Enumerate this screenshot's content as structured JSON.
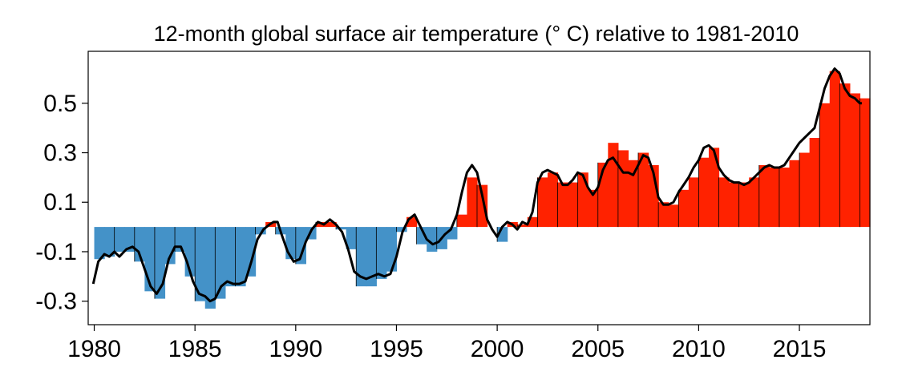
{
  "chart_data": {
    "type": "bar",
    "title": "12-month global surface air temperature (° C) relative to 1981-2010",
    "xlabel": "",
    "ylabel": "",
    "xlim": [
      1979.7,
      2018.5
    ],
    "ylim": [
      -0.395,
      0.71
    ],
    "x_ticks": [
      1980,
      1985,
      1990,
      1995,
      2000,
      2005,
      2010,
      2015
    ],
    "y_ticks": [
      -0.3,
      -0.1,
      0.1,
      0.3,
      0.5
    ],
    "y_tick_labels": [
      "-0.3",
      "-0.1",
      "0.1",
      "0.3",
      "0.5"
    ],
    "x_tick_labels": [
      "1980",
      "1985",
      "1990",
      "1995",
      "2000",
      "2005",
      "2010",
      "2015"
    ],
    "grid": false,
    "colors": {
      "positive": "#ff2200",
      "negative": "#4492c8",
      "line": "#000000",
      "year_divider": "#000000"
    },
    "series": [
      {
        "kind": "bars",
        "x": [
          1980.0,
          1980.5,
          1981.0,
          1981.5,
          1982.0,
          1982.5,
          1983.0,
          1983.5,
          1984.0,
          1984.5,
          1985.0,
          1985.5,
          1986.0,
          1986.5,
          1987.0,
          1987.5,
          1988.0,
          1988.5,
          1989.0,
          1989.5,
          1990.0,
          1990.5,
          1991.0,
          1991.5,
          1992.0,
          1992.5,
          1993.0,
          1993.5,
          1994.0,
          1994.5,
          1995.0,
          1995.5,
          1996.0,
          1996.5,
          1997.0,
          1997.5,
          1998.0,
          1998.5,
          1999.0,
          1999.5,
          2000.0,
          2000.5,
          2001.0,
          2001.5,
          2002.0,
          2002.5,
          2003.0,
          2003.5,
          2004.0,
          2004.5,
          2005.0,
          2005.5,
          2006.0,
          2006.5,
          2007.0,
          2007.5,
          2008.0,
          2008.5,
          2009.0,
          2009.5,
          2010.0,
          2010.5,
          2011.0,
          2011.5,
          2012.0,
          2012.5,
          2013.0,
          2013.5,
          2014.0,
          2014.5,
          2015.0,
          2015.5,
          2016.0,
          2016.5,
          2017.0,
          2017.5,
          2018.0
        ],
        "values": [
          -0.13,
          -0.12,
          -0.1,
          -0.1,
          -0.14,
          -0.26,
          -0.29,
          -0.15,
          -0.1,
          -0.2,
          -0.3,
          -0.33,
          -0.29,
          -0.24,
          -0.24,
          -0.2,
          -0.03,
          0.02,
          -0.03,
          -0.13,
          -0.15,
          -0.05,
          0.02,
          0.02,
          -0.01,
          -0.09,
          -0.24,
          -0.24,
          -0.21,
          -0.18,
          -0.02,
          0.04,
          -0.07,
          -0.1,
          -0.09,
          -0.05,
          0.05,
          0.2,
          0.17,
          0.0,
          -0.06,
          0.02,
          0.01,
          0.04,
          0.2,
          0.22,
          0.18,
          0.18,
          0.22,
          0.15,
          0.26,
          0.34,
          0.31,
          0.27,
          0.3,
          0.25,
          0.1,
          0.09,
          0.15,
          0.2,
          0.28,
          0.32,
          0.2,
          0.18,
          0.18,
          0.2,
          0.25,
          0.24,
          0.24,
          0.27,
          0.3,
          0.36,
          0.5,
          0.63,
          0.58,
          0.54,
          0.52
        ]
      },
      {
        "kind": "line",
        "x": [
          1979.95,
          1980.2,
          1980.5,
          1980.75,
          1981.0,
          1981.25,
          1981.6,
          1981.9,
          1982.2,
          1982.5,
          1982.8,
          1983.1,
          1983.4,
          1983.7,
          1984.0,
          1984.3,
          1984.6,
          1984.9,
          1985.2,
          1985.5,
          1985.75,
          1986.0,
          1986.3,
          1986.6,
          1986.9,
          1987.2,
          1987.5,
          1987.8,
          1988.1,
          1988.4,
          1988.7,
          1988.9,
          1989.1,
          1989.3,
          1989.6,
          1989.9,
          1990.2,
          1990.5,
          1990.8,
          1991.1,
          1991.4,
          1991.7,
          1992.0,
          1992.3,
          1992.6,
          1992.9,
          1993.2,
          1993.5,
          1993.8,
          1994.1,
          1994.4,
          1994.7,
          1995.0,
          1995.3,
          1995.6,
          1995.9,
          1996.2,
          1996.5,
          1996.8,
          1997.1,
          1997.4,
          1997.7,
          1998.0,
          1998.25,
          1998.5,
          1998.75,
          1999.0,
          1999.25,
          1999.5,
          1999.75,
          2000.0,
          2000.25,
          2000.5,
          2000.75,
          2001.0,
          2001.25,
          2001.5,
          2001.75,
          2002.0,
          2002.25,
          2002.5,
          2002.75,
          2003.0,
          2003.25,
          2003.5,
          2003.75,
          2004.0,
          2004.25,
          2004.5,
          2004.75,
          2005.0,
          2005.25,
          2005.5,
          2005.75,
          2006.0,
          2006.25,
          2006.5,
          2006.75,
          2007.0,
          2007.25,
          2007.5,
          2007.75,
          2008.0,
          2008.25,
          2008.5,
          2008.75,
          2009.0,
          2009.25,
          2009.5,
          2009.75,
          2010.0,
          2010.25,
          2010.5,
          2010.75,
          2011.0,
          2011.25,
          2011.5,
          2011.75,
          2012.0,
          2012.25,
          2012.5,
          2012.75,
          2013.0,
          2013.25,
          2013.5,
          2013.75,
          2014.0,
          2014.25,
          2014.5,
          2014.75,
          2015.0,
          2015.25,
          2015.5,
          2015.75,
          2016.0,
          2016.25,
          2016.5,
          2016.75,
          2017.0,
          2017.25,
          2017.5,
          2017.75,
          2018.0,
          2018.1
        ],
        "values": [
          -0.23,
          -0.14,
          -0.11,
          -0.12,
          -0.1,
          -0.12,
          -0.09,
          -0.08,
          -0.1,
          -0.17,
          -0.24,
          -0.27,
          -0.23,
          -0.13,
          -0.08,
          -0.08,
          -0.14,
          -0.22,
          -0.27,
          -0.28,
          -0.3,
          -0.29,
          -0.24,
          -0.22,
          -0.23,
          -0.23,
          -0.22,
          -0.14,
          -0.05,
          -0.01,
          0.01,
          0.02,
          0.02,
          -0.03,
          -0.1,
          -0.14,
          -0.13,
          -0.06,
          -0.01,
          0.02,
          0.01,
          0.03,
          0.01,
          -0.02,
          -0.09,
          -0.18,
          -0.2,
          -0.21,
          -0.2,
          -0.19,
          -0.2,
          -0.19,
          -0.12,
          -0.02,
          0.03,
          0.05,
          0.0,
          -0.05,
          -0.07,
          -0.06,
          -0.03,
          -0.01,
          0.05,
          0.14,
          0.22,
          0.25,
          0.22,
          0.13,
          0.03,
          -0.01,
          -0.04,
          0.0,
          0.02,
          0.01,
          -0.01,
          0.02,
          0.01,
          0.06,
          0.18,
          0.22,
          0.23,
          0.22,
          0.21,
          0.17,
          0.17,
          0.19,
          0.22,
          0.21,
          0.16,
          0.13,
          0.16,
          0.23,
          0.27,
          0.28,
          0.25,
          0.22,
          0.22,
          0.21,
          0.25,
          0.29,
          0.28,
          0.22,
          0.12,
          0.09,
          0.09,
          0.1,
          0.14,
          0.17,
          0.2,
          0.24,
          0.27,
          0.32,
          0.33,
          0.31,
          0.24,
          0.21,
          0.19,
          0.18,
          0.18,
          0.17,
          0.18,
          0.2,
          0.22,
          0.24,
          0.25,
          0.24,
          0.24,
          0.25,
          0.28,
          0.31,
          0.34,
          0.36,
          0.38,
          0.4,
          0.48,
          0.56,
          0.61,
          0.64,
          0.62,
          0.56,
          0.53,
          0.52,
          0.5,
          0.5
        ]
      }
    ]
  }
}
